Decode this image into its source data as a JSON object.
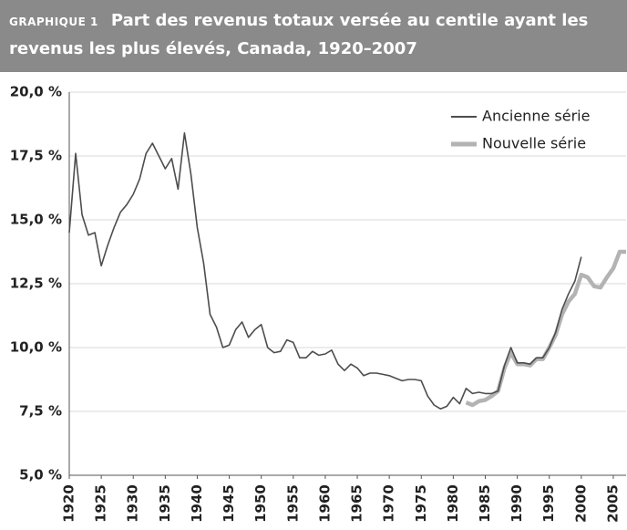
{
  "chart_data": {
    "type": "line",
    "label": "GRAPHIQUE 1",
    "title": "Part des revenus totaux versée au centile ayant les revenus les plus élevés, Canada, 1920–2007",
    "x": [
      1920,
      1921,
      1922,
      1923,
      1924,
      1925,
      1926,
      1927,
      1928,
      1929,
      1930,
      1931,
      1932,
      1933,
      1934,
      1935,
      1936,
      1937,
      1938,
      1939,
      1940,
      1941,
      1942,
      1943,
      1944,
      1945,
      1946,
      1947,
      1948,
      1949,
      1950,
      1951,
      1952,
      1953,
      1954,
      1955,
      1956,
      1957,
      1958,
      1959,
      1960,
      1961,
      1962,
      1963,
      1964,
      1965,
      1966,
      1967,
      1968,
      1969,
      1970,
      1971,
      1972,
      1973,
      1974,
      1975,
      1976,
      1977,
      1978,
      1979,
      1980,
      1981,
      1982,
      1983,
      1984,
      1985,
      1986,
      1987,
      1988,
      1989,
      1990,
      1991,
      1992,
      1993,
      1994,
      1995,
      1996,
      1997,
      1998,
      1999,
      2000,
      2001,
      2002,
      2003,
      2004,
      2005,
      2006,
      2007
    ],
    "series": [
      {
        "name": "Ancienne série",
        "color": "#4d4d4d",
        "values": [
          14.5,
          17.6,
          15.2,
          14.4,
          14.5,
          13.2,
          14.0,
          14.7,
          15.3,
          15.6,
          16.0,
          16.6,
          17.6,
          18.0,
          17.5,
          17.0,
          17.4,
          16.2,
          18.4,
          16.8,
          14.7,
          13.3,
          11.3,
          10.8,
          10.0,
          10.1,
          10.7,
          11.0,
          10.4,
          10.7,
          10.9,
          10.0,
          9.8,
          9.85,
          10.3,
          10.2,
          9.6,
          9.6,
          9.85,
          9.7,
          9.75,
          9.9,
          9.35,
          9.1,
          9.35,
          9.2,
          8.9,
          9.0,
          9.0,
          8.95,
          8.9,
          8.8,
          8.7,
          8.75,
          8.75,
          8.7,
          8.1,
          7.75,
          7.6,
          7.7,
          8.05,
          7.8,
          8.4,
          8.2,
          8.25,
          8.2,
          8.2,
          8.3,
          9.3,
          10.0,
          9.4,
          9.4,
          9.35,
          9.6,
          9.6,
          10.0,
          10.6,
          11.5,
          12.1,
          12.6,
          13.55,
          null,
          null,
          null,
          null,
          null,
          null,
          null
        ]
      },
      {
        "name": "Nouvelle série",
        "color": "#b3b3b3",
        "values": [
          null,
          null,
          null,
          null,
          null,
          null,
          null,
          null,
          null,
          null,
          null,
          null,
          null,
          null,
          null,
          null,
          null,
          null,
          null,
          null,
          null,
          null,
          null,
          null,
          null,
          null,
          null,
          null,
          null,
          null,
          null,
          null,
          null,
          null,
          null,
          null,
          null,
          null,
          null,
          null,
          null,
          null,
          null,
          null,
          null,
          null,
          null,
          null,
          null,
          null,
          null,
          null,
          null,
          null,
          null,
          null,
          null,
          null,
          null,
          null,
          null,
          null,
          7.85,
          7.75,
          7.9,
          7.95,
          8.1,
          8.3,
          9.2,
          9.8,
          9.35,
          9.35,
          9.3,
          9.55,
          9.55,
          10.0,
          10.5,
          11.3,
          11.8,
          12.1,
          12.85,
          12.75,
          12.4,
          12.35,
          12.75,
          13.1,
          13.75,
          13.75
        ]
      }
    ],
    "xlim": [
      1920,
      2007
    ],
    "xticks": [
      1920,
      1925,
      1930,
      1935,
      1940,
      1945,
      1950,
      1955,
      1960,
      1965,
      1970,
      1975,
      1980,
      1985,
      1990,
      1995,
      2000,
      2005
    ],
    "ylim": [
      5,
      20
    ],
    "yticks": [
      {
        "value": 5,
        "label": "5,0 %"
      },
      {
        "value": 7.5,
        "label": "7,5 %"
      },
      {
        "value": 10,
        "label": "10,0 %"
      },
      {
        "value": 12.5,
        "label": "12,5 %"
      },
      {
        "value": 15,
        "label": "15,0 %"
      },
      {
        "value": 17.5,
        "label": "17,5 %"
      },
      {
        "value": 20,
        "label": "20,0 %"
      }
    ],
    "grid": true,
    "legend": "top-right"
  }
}
